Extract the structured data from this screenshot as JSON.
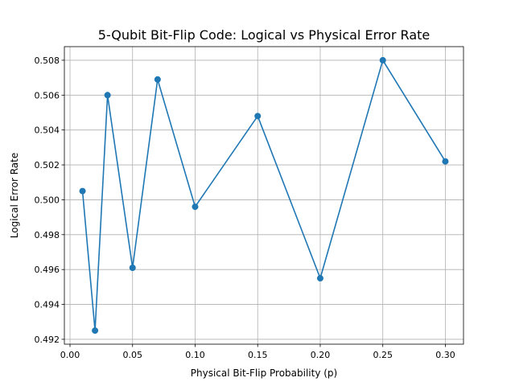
{
  "chart_data": {
    "type": "line",
    "title": "5-Qubit Bit-Flip Code: Logical vs Physical Error Rate",
    "xlabel": "Physical Bit-Flip Probability (p)",
    "ylabel": "Logical Error Rate",
    "xlim": [
      -0.0045,
      0.3145
    ],
    "ylim": [
      0.49172,
      0.50878
    ],
    "grid": true,
    "line_color": "#1f77b4",
    "x": [
      0.01,
      0.02,
      0.03,
      0.05,
      0.07,
      0.1,
      0.15,
      0.2,
      0.25,
      0.3
    ],
    "y": [
      0.5005,
      0.4925,
      0.506,
      0.4961,
      0.5069,
      0.4996,
      0.5048,
      0.4955,
      0.508,
      0.5022
    ],
    "xticks": [
      0.0,
      0.05,
      0.1,
      0.15,
      0.2,
      0.25,
      0.3
    ],
    "xtick_labels": [
      "0.00",
      "0.05",
      "0.10",
      "0.15",
      "0.20",
      "0.25",
      "0.30"
    ],
    "yticks": [
      0.492,
      0.494,
      0.496,
      0.498,
      0.5,
      0.502,
      0.504,
      0.506,
      0.508
    ],
    "ytick_labels": [
      "0.492",
      "0.494",
      "0.496",
      "0.498",
      "0.500",
      "0.502",
      "0.504",
      "0.506",
      "0.508"
    ]
  }
}
